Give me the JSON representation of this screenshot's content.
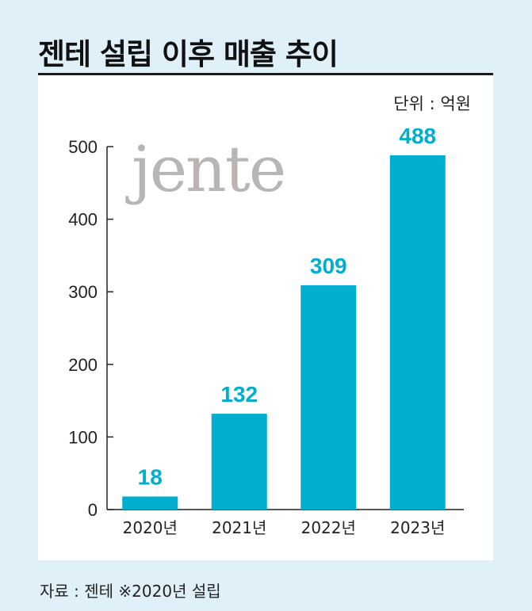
{
  "title": "젠테 설립 이후 매출 추이",
  "unit": "단위 : 억원",
  "logo": "jente",
  "source": "자료 : 젠테  ※2020년 설립",
  "colors": {
    "bar": "#00aecd",
    "label": "#00aecd",
    "background": "#dff0f8",
    "panel": "#ffffff"
  },
  "chart_data": {
    "type": "bar",
    "title": "젠테 설립 이후 매출 추이",
    "categories": [
      "2020년",
      "2021년",
      "2022년",
      "2023년"
    ],
    "values": [
      18,
      132,
      309,
      488
    ],
    "ylim": [
      0,
      500
    ],
    "yticks": [
      0,
      100,
      200,
      300,
      400,
      500
    ],
    "ylabel": "",
    "xlabel": "",
    "grid": false
  }
}
